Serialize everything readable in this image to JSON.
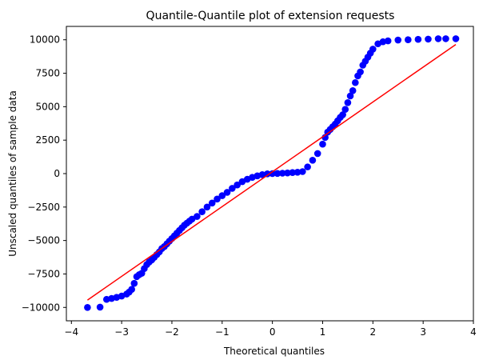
{
  "chart_data": {
    "type": "scatter",
    "title": "Quantile-Quantile plot of extension requests",
    "xlabel": "Theoretical quantiles",
    "ylabel": "Unscaled quantiles of sample data",
    "xlim": [
      -4.1,
      4.0
    ],
    "ylim": [
      -11000,
      11000
    ],
    "xticks": [
      -4,
      -3,
      -2,
      -1,
      0,
      1,
      2,
      3,
      4
    ],
    "xtick_labels": [
      "−4",
      "−3",
      "−2",
      "−1",
      "0",
      "1",
      "2",
      "3",
      "4"
    ],
    "yticks": [
      -10000,
      -7500,
      -5000,
      -2500,
      0,
      2500,
      5000,
      7500,
      10000
    ],
    "ytick_labels": [
      "−10000",
      "−7500",
      "−5000",
      "−2500",
      "0",
      "2500",
      "5000",
      "7500",
      "10000"
    ],
    "grid": false,
    "series": [
      {
        "kind": "scatter",
        "color": "#0000ff",
        "points": [
          [
            -3.68,
            -10000
          ],
          [
            -3.43,
            -9980
          ],
          [
            -3.3,
            -9400
          ],
          [
            -3.2,
            -9330
          ],
          [
            -3.1,
            -9250
          ],
          [
            -3.0,
            -9150
          ],
          [
            -2.9,
            -9000
          ],
          [
            -2.85,
            -8850
          ],
          [
            -2.8,
            -8650
          ],
          [
            -2.75,
            -8200
          ],
          [
            -2.7,
            -7700
          ],
          [
            -2.65,
            -7550
          ],
          [
            -2.6,
            -7450
          ],
          [
            -2.55,
            -7100
          ],
          [
            -2.5,
            -6800
          ],
          [
            -2.45,
            -6600
          ],
          [
            -2.4,
            -6450
          ],
          [
            -2.35,
            -6250
          ],
          [
            -2.3,
            -6050
          ],
          [
            -2.25,
            -5850
          ],
          [
            -2.2,
            -5600
          ],
          [
            -2.15,
            -5450
          ],
          [
            -2.1,
            -5250
          ],
          [
            -2.05,
            -5050
          ],
          [
            -2.0,
            -4850
          ],
          [
            -1.95,
            -4650
          ],
          [
            -1.9,
            -4450
          ],
          [
            -1.85,
            -4250
          ],
          [
            -1.8,
            -4050
          ],
          [
            -1.75,
            -3850
          ],
          [
            -1.7,
            -3700
          ],
          [
            -1.65,
            -3550
          ],
          [
            -1.6,
            -3400
          ],
          [
            -1.5,
            -3200
          ],
          [
            -1.4,
            -2850
          ],
          [
            -1.3,
            -2500
          ],
          [
            -1.2,
            -2200
          ],
          [
            -1.1,
            -1900
          ],
          [
            -1.0,
            -1650
          ],
          [
            -0.9,
            -1400
          ],
          [
            -0.8,
            -1100
          ],
          [
            -0.7,
            -850
          ],
          [
            -0.6,
            -600
          ],
          [
            -0.5,
            -420
          ],
          [
            -0.4,
            -280
          ],
          [
            -0.3,
            -170
          ],
          [
            -0.2,
            -80
          ],
          [
            -0.1,
            -20
          ],
          [
            0.0,
            0
          ],
          [
            0.1,
            10
          ],
          [
            0.2,
            30
          ],
          [
            0.3,
            50
          ],
          [
            0.4,
            80
          ],
          [
            0.5,
            100
          ],
          [
            0.6,
            150
          ],
          [
            0.7,
            500
          ],
          [
            0.8,
            1000
          ],
          [
            0.9,
            1500
          ],
          [
            1.0,
            2200
          ],
          [
            1.05,
            2700
          ],
          [
            1.1,
            3100
          ],
          [
            1.15,
            3300
          ],
          [
            1.2,
            3500
          ],
          [
            1.25,
            3700
          ],
          [
            1.3,
            3950
          ],
          [
            1.35,
            4200
          ],
          [
            1.4,
            4400
          ],
          [
            1.45,
            4800
          ],
          [
            1.5,
            5300
          ],
          [
            1.55,
            5800
          ],
          [
            1.6,
            6200
          ],
          [
            1.65,
            6800
          ],
          [
            1.7,
            7300
          ],
          [
            1.75,
            7600
          ],
          [
            1.8,
            8100
          ],
          [
            1.85,
            8400
          ],
          [
            1.9,
            8700
          ],
          [
            1.95,
            9000
          ],
          [
            2.0,
            9300
          ],
          [
            2.1,
            9700
          ],
          [
            2.2,
            9850
          ],
          [
            2.3,
            9920
          ],
          [
            2.5,
            9980
          ],
          [
            2.7,
            10000
          ],
          [
            2.9,
            10030
          ],
          [
            3.1,
            10050
          ],
          [
            3.3,
            10080
          ],
          [
            3.45,
            10080
          ],
          [
            3.65,
            10080
          ]
        ]
      },
      {
        "kind": "line",
        "color": "#ff0000",
        "points": [
          [
            -3.68,
            -9450
          ],
          [
            3.65,
            9650
          ]
        ]
      }
    ]
  }
}
